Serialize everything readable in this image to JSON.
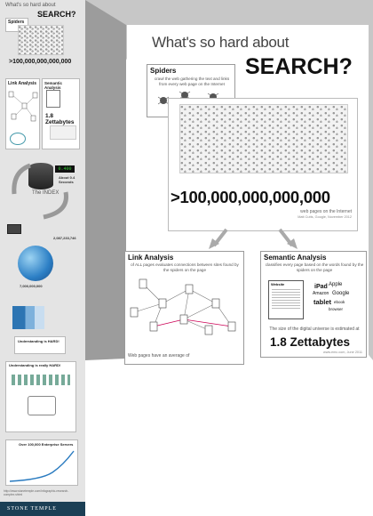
{
  "left": {
    "title_light": "What's so hard about",
    "title_bold": "SEARCH?",
    "spiders": "Spiders",
    "big_number": ">100,000,000,000,000",
    "link_analysis": "Link Analysis",
    "semantic_analysis": "Semantic Analysis",
    "zettabytes": "1.8 Zettabytes",
    "index": "The INDEX",
    "timer": "0.400",
    "about_time": "About 0.4 Seconds",
    "stat_one": "2,087,233,746",
    "stat_two": "7,000,000,000",
    "understanding": "Understanding is HARD!",
    "understanding_long": "Understanding is really HARD!",
    "growth_title": "Over 100,000 Enterprise Servers",
    "url": "http://www.stonetemple.com/infographic-research-complex.shtml",
    "brand": "STONE TEMPLE"
  },
  "panel": {
    "title_light": "What's so hard about",
    "title_bold": "SEARCH?",
    "spiders_title": "Spiders",
    "spiders_desc": "crawl the web gathering the text and links from every web page on the Internet",
    "big_number": ">100,000,000,000,000",
    "big_sub": "web pages on the Internet",
    "big_src": "Matt Cutts, Google, November 2012",
    "link_title": "Link Analysis",
    "link_desc": "of ALL pages evaluates connections between sites found by the spiders on the page",
    "link_tail": "Web pages have an average of",
    "sem_title": "Semantic Analysis",
    "sem_desc": "classifies every page based on the words found by the spiders on the page",
    "sem_doc_label": "Website",
    "words": [
      "iPad",
      "Apple",
      "Amazon",
      "Google",
      "tablet",
      "browser",
      "ebook"
    ],
    "zetta_intro": "The size of the digital universe is estimated at",
    "zetta_value": "1.8 Zettabytes",
    "zetta_src": "www.emc.com, June 2011"
  }
}
